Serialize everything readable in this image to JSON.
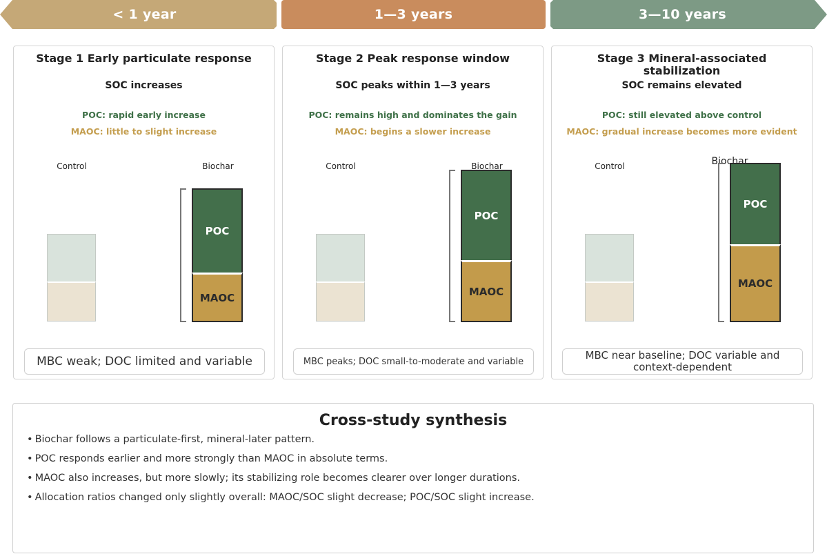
{
  "banners": [
    {
      "label": "< 1 year",
      "color": "#c5a877"
    },
    {
      "label": "1—3 years",
      "color": "#c98c5d"
    },
    {
      "label": "3—10 years",
      "color": "#7d9a85"
    }
  ],
  "stages": [
    {
      "title": "Stage 1 Early particulate response",
      "soc": "SOC increases",
      "poc_note": "POC: rapid early increase",
      "maoc_note": "MAOC: little to slight increase",
      "control_label": "Control",
      "biochar_label": "Biochar",
      "poc_label": "POC",
      "maoc_label": "MAOC",
      "mbc": "MBC weak; DOC limited and variable"
    },
    {
      "title": "Stage 2 Peak response window",
      "soc": "SOC peaks within 1—3 years",
      "poc_note": "POC: remains high and dominates the gain",
      "maoc_note": "MAOC: begins a slower increase",
      "control_label": "Control",
      "biochar_label": "Biochar",
      "poc_label": "POC",
      "maoc_label": "MAOC",
      "mbc": "MBC peaks; DOC small-to-moderate and variable"
    },
    {
      "title": "Stage 3 Mineral-associated stabilization",
      "soc": "SOC remains elevated",
      "poc_note": "POC: still elevated above control",
      "maoc_note": "MAOC: gradual increase becomes more evident",
      "control_label": "Control",
      "biochar_label": "Biochar",
      "poc_label": "POC",
      "maoc_label": "MAOC",
      "mbc": "MBC near baseline; DOC variable and context-dependent"
    }
  ],
  "synthesis": {
    "title": "Cross-study synthesis",
    "bullet": "•",
    "points": [
      "Biochar follows a particulate-first, mineral-later pattern.",
      "POC responds earlier and more strongly than MAOC in absolute terms.",
      "MAOC also increases, but more slowly; its stabilizing role becomes clearer over longer durations.",
      "Allocation ratios changed only slightly overall: MAOC/SOC slight decrease; POC/SOC slight increase."
    ]
  }
}
